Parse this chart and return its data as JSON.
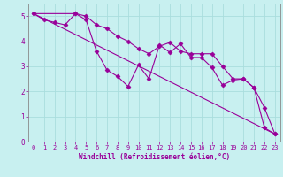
{
  "xlabel": "Windchill (Refroidissement éolien,°C)",
  "bg_color": "#c8f0f0",
  "line_color": "#990099",
  "grid_color": "#aadddd",
  "xlim": [
    -0.5,
    23.5
  ],
  "ylim": [
    0,
    5.5
  ],
  "xticks": [
    0,
    1,
    2,
    3,
    4,
    5,
    6,
    7,
    8,
    9,
    10,
    11,
    12,
    13,
    14,
    15,
    16,
    17,
    18,
    19,
    20,
    21,
    22,
    23
  ],
  "yticks": [
    0,
    1,
    2,
    3,
    4,
    5
  ],
  "line1_x": [
    0,
    1,
    2,
    3,
    4,
    5,
    6,
    7,
    8,
    9,
    10,
    11,
    12,
    13,
    14,
    15,
    16,
    17,
    18,
    19,
    20,
    21,
    22,
    23
  ],
  "line1_y": [
    5.1,
    4.85,
    4.75,
    4.65,
    5.1,
    5.0,
    4.65,
    4.5,
    4.2,
    4.0,
    3.7,
    3.5,
    3.8,
    3.95,
    3.6,
    3.5,
    3.5,
    3.5,
    3.0,
    2.5,
    2.5,
    2.15,
    0.55,
    0.3
  ],
  "line2_x": [
    0,
    4,
    5,
    6,
    7,
    8,
    9,
    10,
    11,
    12,
    13,
    14,
    15,
    16,
    17,
    18,
    19,
    20,
    21,
    22,
    23
  ],
  "line2_y": [
    5.1,
    5.1,
    4.85,
    3.6,
    2.85,
    2.6,
    2.2,
    3.05,
    2.5,
    3.85,
    3.55,
    3.9,
    3.35,
    3.35,
    2.95,
    2.25,
    2.45,
    2.5,
    2.15,
    1.35,
    0.3
  ],
  "line3_x": [
    0,
    23
  ],
  "line3_y": [
    5.1,
    0.3
  ]
}
